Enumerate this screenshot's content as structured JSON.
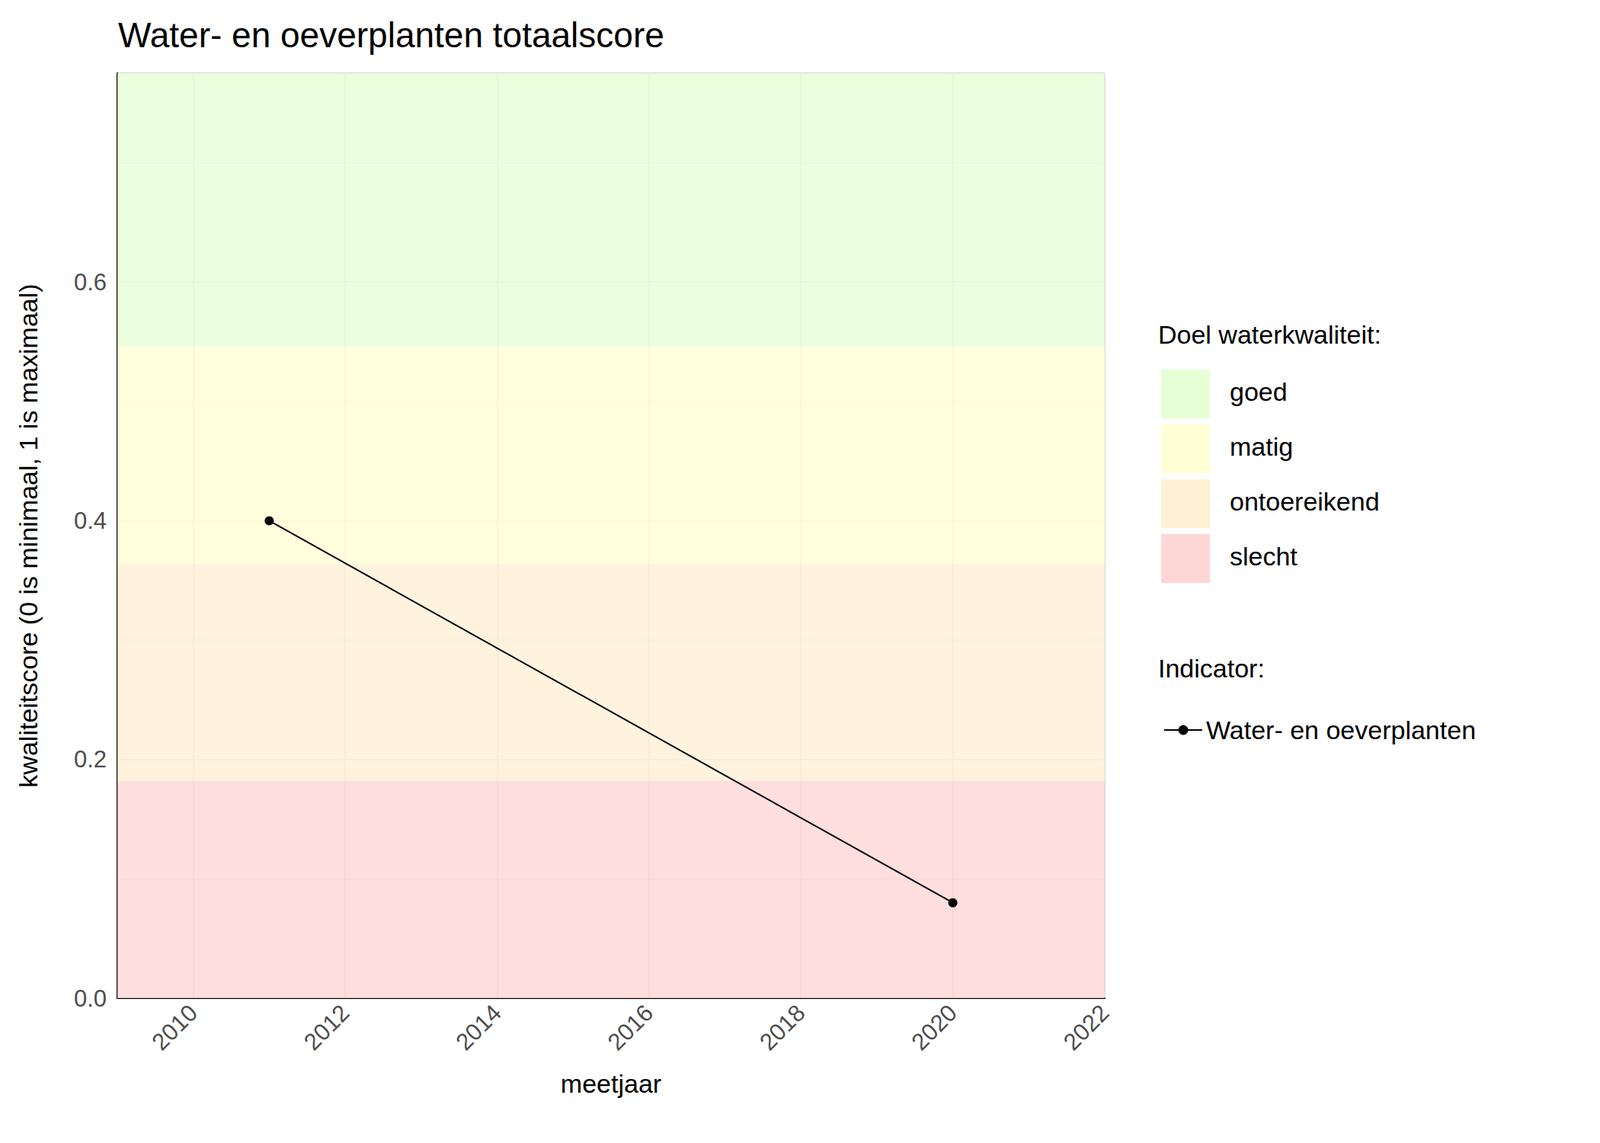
{
  "chart_data": {
    "type": "line",
    "title": "Water- en oeverplanten totaalscore",
    "x_label": "meetjaar",
    "y_label": "kwaliteitscore (0 is minimaal, 1 is maximaal)",
    "x": [
      2011,
      2020
    ],
    "series": [
      {
        "name": "Water- en oeverplanten",
        "color": "#000000",
        "values": [
          0.4,
          0.08
        ],
        "marker": "circle"
      }
    ],
    "xlim": [
      2009,
      2022
    ],
    "xticks": [
      2010,
      2012,
      2014,
      2016,
      2018,
      2020,
      2022
    ],
    "ylim": [
      0,
      0.775
    ],
    "yticks": [
      {
        "value": 0,
        "label": "0.0"
      },
      0.2,
      0.4,
      0.6
    ],
    "grid": true,
    "legend_title": "Indicator:",
    "bands_title": "Doel waterkwaliteit:",
    "bands": [
      {
        "name": "goed",
        "color": "#e6ffd6",
        "from": 0.546,
        "to": 0.775
      },
      {
        "name": "matig",
        "color": "#ffffd6",
        "from": 0.364,
        "to": 0.546
      },
      {
        "name": "ontoereikend",
        "color": "#fff0d6",
        "from": 0.182,
        "to": 0.364
      },
      {
        "name": "slecht",
        "color": "#ffd6d6",
        "from": 0,
        "to": 0.182
      }
    ]
  }
}
